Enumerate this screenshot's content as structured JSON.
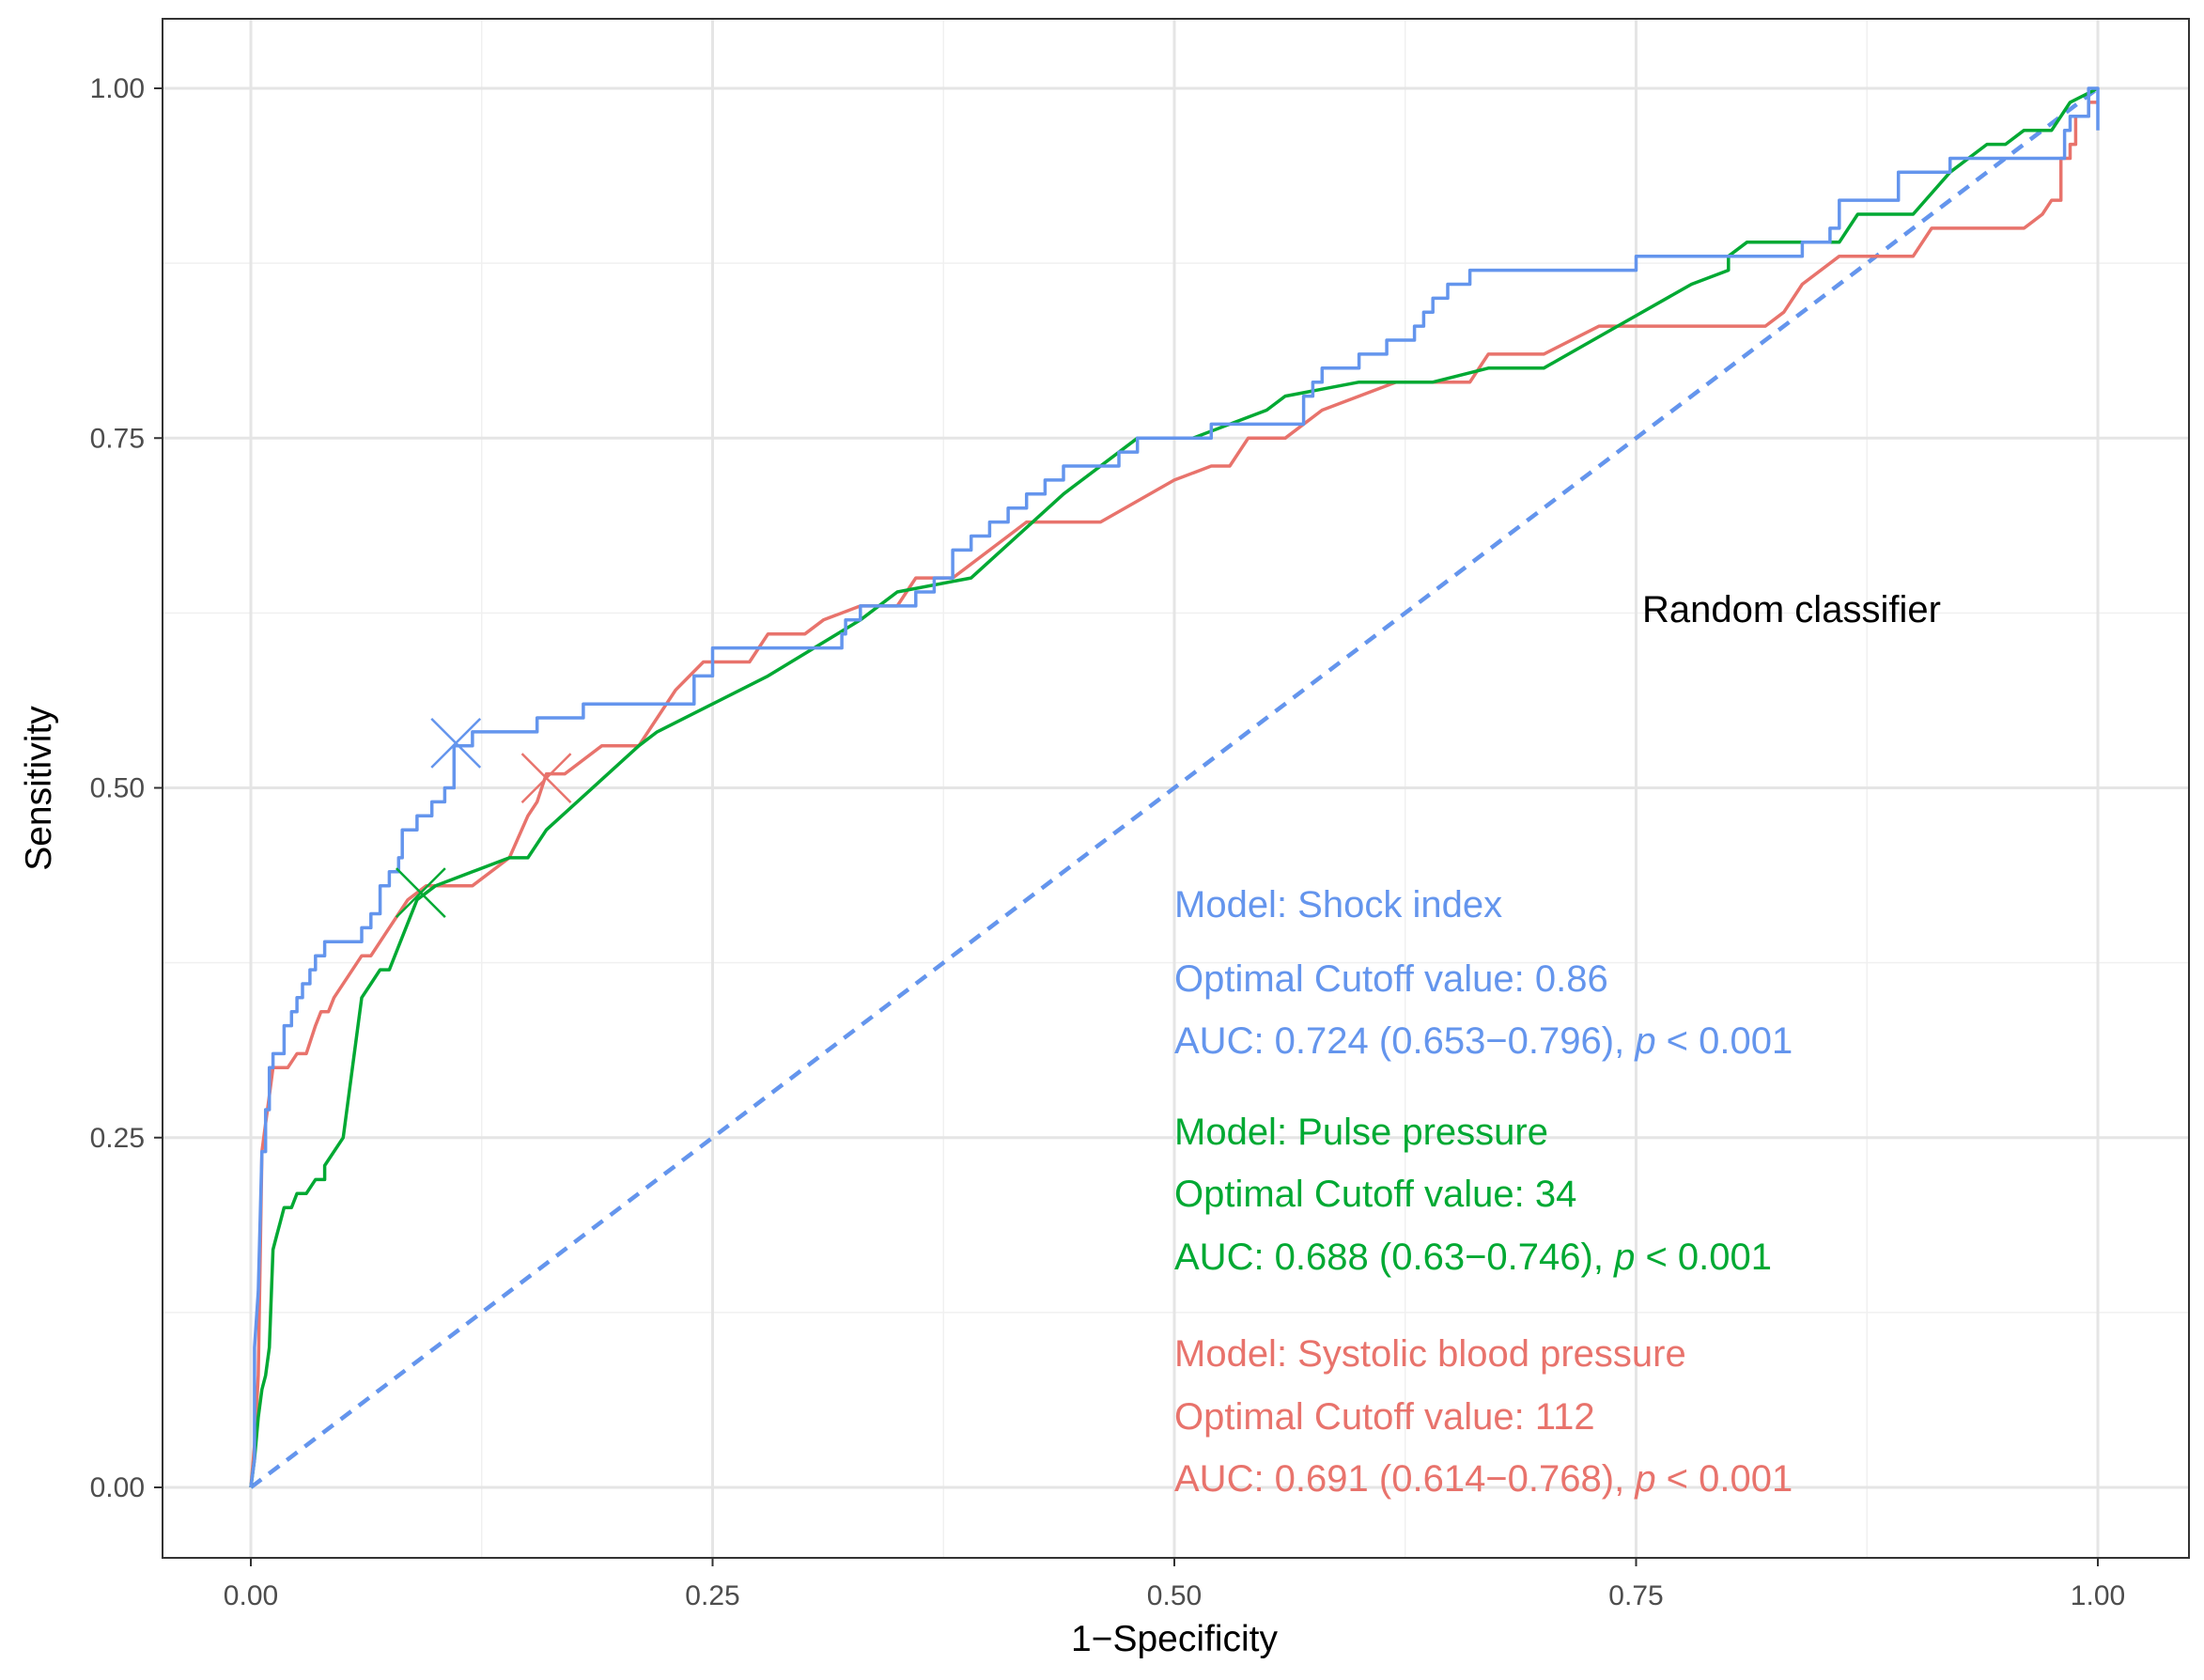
{
  "chart_data": {
    "type": "line",
    "xlabel": "1−Specificity",
    "ylabel": "Sensitivity",
    "xlim": [
      0,
      1
    ],
    "ylim": [
      0,
      1
    ],
    "x_ticks": [
      "0.00",
      "0.25",
      "0.50",
      "0.75",
      "1.00"
    ],
    "y_ticks": [
      "0.00",
      "0.25",
      "0.50",
      "0.75",
      "1.00"
    ],
    "grid": true,
    "legend": "none",
    "series": [
      {
        "key": "random",
        "color": "#6495ED",
        "dashed": true,
        "x": [
          0,
          1
        ],
        "y": [
          0,
          1
        ]
      },
      {
        "key": "shock",
        "color": "#6495ED",
        "points": [
          [
            0,
            0
          ],
          [
            0.002,
            0.02
          ],
          [
            0.002,
            0.1
          ],
          [
            0.004,
            0.14
          ],
          [
            0.006,
            0.24
          ],
          [
            0.008,
            0.24
          ],
          [
            0.008,
            0.27
          ],
          [
            0.01,
            0.27
          ],
          [
            0.01,
            0.3
          ],
          [
            0.012,
            0.3
          ],
          [
            0.012,
            0.31
          ],
          [
            0.018,
            0.31
          ],
          [
            0.018,
            0.33
          ],
          [
            0.022,
            0.33
          ],
          [
            0.022,
            0.34
          ],
          [
            0.025,
            0.34
          ],
          [
            0.025,
            0.35
          ],
          [
            0.028,
            0.35
          ],
          [
            0.028,
            0.36
          ],
          [
            0.032,
            0.36
          ],
          [
            0.032,
            0.37
          ],
          [
            0.035,
            0.37
          ],
          [
            0.035,
            0.38
          ],
          [
            0.04,
            0.38
          ],
          [
            0.04,
            0.39
          ],
          [
            0.06,
            0.39
          ],
          [
            0.06,
            0.4
          ],
          [
            0.065,
            0.4
          ],
          [
            0.065,
            0.41
          ],
          [
            0.07,
            0.41
          ],
          [
            0.07,
            0.43
          ],
          [
            0.075,
            0.43
          ],
          [
            0.075,
            0.44
          ],
          [
            0.08,
            0.44
          ],
          [
            0.08,
            0.45
          ],
          [
            0.082,
            0.45
          ],
          [
            0.082,
            0.47
          ],
          [
            0.09,
            0.47
          ],
          [
            0.09,
            0.48
          ],
          [
            0.098,
            0.48
          ],
          [
            0.098,
            0.49
          ],
          [
            0.105,
            0.49
          ],
          [
            0.105,
            0.5
          ],
          [
            0.11,
            0.5
          ],
          [
            0.11,
            0.53
          ],
          [
            0.12,
            0.53
          ],
          [
            0.12,
            0.54
          ],
          [
            0.155,
            0.54
          ],
          [
            0.155,
            0.55
          ],
          [
            0.18,
            0.55
          ],
          [
            0.18,
            0.56
          ],
          [
            0.24,
            0.56
          ],
          [
            0.24,
            0.58
          ],
          [
            0.25,
            0.58
          ],
          [
            0.25,
            0.6
          ],
          [
            0.32,
            0.6
          ],
          [
            0.32,
            0.61
          ],
          [
            0.322,
            0.61
          ],
          [
            0.322,
            0.62
          ],
          [
            0.33,
            0.62
          ],
          [
            0.33,
            0.63
          ],
          [
            0.36,
            0.63
          ],
          [
            0.36,
            0.64
          ],
          [
            0.37,
            0.64
          ],
          [
            0.37,
            0.65
          ],
          [
            0.38,
            0.65
          ],
          [
            0.38,
            0.67
          ],
          [
            0.39,
            0.67
          ],
          [
            0.39,
            0.68
          ],
          [
            0.4,
            0.68
          ],
          [
            0.4,
            0.69
          ],
          [
            0.41,
            0.69
          ],
          [
            0.41,
            0.7
          ],
          [
            0.42,
            0.7
          ],
          [
            0.42,
            0.71
          ],
          [
            0.43,
            0.71
          ],
          [
            0.43,
            0.72
          ],
          [
            0.44,
            0.72
          ],
          [
            0.44,
            0.73
          ],
          [
            0.47,
            0.73
          ],
          [
            0.47,
            0.74
          ],
          [
            0.48,
            0.74
          ],
          [
            0.48,
            0.75
          ],
          [
            0.52,
            0.75
          ],
          [
            0.52,
            0.76
          ],
          [
            0.57,
            0.76
          ],
          [
            0.57,
            0.78
          ],
          [
            0.575,
            0.78
          ],
          [
            0.575,
            0.79
          ],
          [
            0.58,
            0.79
          ],
          [
            0.58,
            0.8
          ],
          [
            0.6,
            0.8
          ],
          [
            0.6,
            0.81
          ],
          [
            0.615,
            0.81
          ],
          [
            0.615,
            0.82
          ],
          [
            0.63,
            0.82
          ],
          [
            0.63,
            0.83
          ],
          [
            0.635,
            0.83
          ],
          [
            0.635,
            0.84
          ],
          [
            0.64,
            0.84
          ],
          [
            0.64,
            0.85
          ],
          [
            0.648,
            0.85
          ],
          [
            0.648,
            0.86
          ],
          [
            0.66,
            0.86
          ],
          [
            0.66,
            0.87
          ],
          [
            0.75,
            0.87
          ],
          [
            0.75,
            0.88
          ],
          [
            0.84,
            0.88
          ],
          [
            0.84,
            0.89
          ],
          [
            0.855,
            0.89
          ],
          [
            0.855,
            0.9
          ],
          [
            0.86,
            0.9
          ],
          [
            0.86,
            0.91
          ],
          [
            0.86,
            0.92
          ],
          [
            0.892,
            0.92
          ],
          [
            0.892,
            0.94
          ],
          [
            0.92,
            0.94
          ],
          [
            0.92,
            0.95
          ],
          [
            0.982,
            0.95
          ],
          [
            0.982,
            0.97
          ],
          [
            0.985,
            0.97
          ],
          [
            0.985,
            0.98
          ],
          [
            0.995,
            0.98
          ],
          [
            0.995,
            1.0
          ],
          [
            1.0,
            1.0
          ],
          [
            1.0,
            0.97
          ]
        ]
      },
      {
        "key": "pulse",
        "color": "#00A933",
        "points": [
          [
            0,
            0
          ],
          [
            0.002,
            0.02
          ],
          [
            0.004,
            0.05
          ],
          [
            0.006,
            0.07
          ],
          [
            0.008,
            0.08
          ],
          [
            0.01,
            0.1
          ],
          [
            0.012,
            0.17
          ],
          [
            0.014,
            0.18
          ],
          [
            0.016,
            0.19
          ],
          [
            0.018,
            0.2
          ],
          [
            0.022,
            0.2
          ],
          [
            0.025,
            0.21
          ],
          [
            0.03,
            0.21
          ],
          [
            0.035,
            0.22
          ],
          [
            0.04,
            0.22
          ],
          [
            0.04,
            0.23
          ],
          [
            0.05,
            0.25
          ],
          [
            0.06,
            0.35
          ],
          [
            0.065,
            0.36
          ],
          [
            0.07,
            0.37
          ],
          [
            0.075,
            0.37
          ],
          [
            0.09,
            0.42
          ],
          [
            0.1,
            0.43
          ],
          [
            0.12,
            0.44
          ],
          [
            0.14,
            0.45
          ],
          [
            0.15,
            0.45
          ],
          [
            0.16,
            0.47
          ],
          [
            0.21,
            0.53
          ],
          [
            0.22,
            0.54
          ],
          [
            0.25,
            0.56
          ],
          [
            0.28,
            0.58
          ],
          [
            0.33,
            0.62
          ],
          [
            0.35,
            0.64
          ],
          [
            0.39,
            0.65
          ],
          [
            0.44,
            0.71
          ],
          [
            0.48,
            0.75
          ],
          [
            0.51,
            0.75
          ],
          [
            0.55,
            0.77
          ],
          [
            0.56,
            0.78
          ],
          [
            0.6,
            0.79
          ],
          [
            0.64,
            0.79
          ],
          [
            0.67,
            0.8
          ],
          [
            0.7,
            0.8
          ],
          [
            0.74,
            0.83
          ],
          [
            0.78,
            0.86
          ],
          [
            0.8,
            0.87
          ],
          [
            0.8,
            0.88
          ],
          [
            0.81,
            0.89
          ],
          [
            0.84,
            0.89
          ],
          [
            0.86,
            0.89
          ],
          [
            0.87,
            0.91
          ],
          [
            0.9,
            0.91
          ],
          [
            0.92,
            0.94
          ],
          [
            0.94,
            0.96
          ],
          [
            0.95,
            0.96
          ],
          [
            0.96,
            0.97
          ],
          [
            0.975,
            0.97
          ],
          [
            0.985,
            0.99
          ],
          [
            1.0,
            1.0
          ]
        ]
      },
      {
        "key": "systolic",
        "color": "#E8736C",
        "points": [
          [
            0,
            0
          ],
          [
            0.002,
            0.03
          ],
          [
            0.004,
            0.08
          ],
          [
            0.006,
            0.24
          ],
          [
            0.008,
            0.26
          ],
          [
            0.01,
            0.28
          ],
          [
            0.012,
            0.3
          ],
          [
            0.02,
            0.3
          ],
          [
            0.025,
            0.31
          ],
          [
            0.03,
            0.31
          ],
          [
            0.035,
            0.33
          ],
          [
            0.038,
            0.34
          ],
          [
            0.042,
            0.34
          ],
          [
            0.045,
            0.35
          ],
          [
            0.06,
            0.38
          ],
          [
            0.065,
            0.38
          ],
          [
            0.07,
            0.39
          ],
          [
            0.075,
            0.4
          ],
          [
            0.08,
            0.41
          ],
          [
            0.085,
            0.42
          ],
          [
            0.095,
            0.43
          ],
          [
            0.12,
            0.43
          ],
          [
            0.14,
            0.45
          ],
          [
            0.15,
            0.48
          ],
          [
            0.155,
            0.49
          ],
          [
            0.16,
            0.51
          ],
          [
            0.17,
            0.51
          ],
          [
            0.19,
            0.53
          ],
          [
            0.21,
            0.53
          ],
          [
            0.23,
            0.57
          ],
          [
            0.245,
            0.59
          ],
          [
            0.27,
            0.59
          ],
          [
            0.28,
            0.61
          ],
          [
            0.3,
            0.61
          ],
          [
            0.31,
            0.62
          ],
          [
            0.33,
            0.63
          ],
          [
            0.35,
            0.63
          ],
          [
            0.36,
            0.65
          ],
          [
            0.38,
            0.65
          ],
          [
            0.4,
            0.67
          ],
          [
            0.41,
            0.68
          ],
          [
            0.42,
            0.69
          ],
          [
            0.46,
            0.69
          ],
          [
            0.5,
            0.72
          ],
          [
            0.52,
            0.73
          ],
          [
            0.53,
            0.73
          ],
          [
            0.54,
            0.75
          ],
          [
            0.56,
            0.75
          ],
          [
            0.58,
            0.77
          ],
          [
            0.6,
            0.78
          ],
          [
            0.62,
            0.79
          ],
          [
            0.66,
            0.79
          ],
          [
            0.67,
            0.81
          ],
          [
            0.7,
            0.81
          ],
          [
            0.73,
            0.83
          ],
          [
            0.82,
            0.83
          ],
          [
            0.83,
            0.84
          ],
          [
            0.84,
            0.86
          ],
          [
            0.86,
            0.88
          ],
          [
            0.9,
            0.88
          ],
          [
            0.91,
            0.9
          ],
          [
            0.96,
            0.9
          ],
          [
            0.97,
            0.91
          ],
          [
            0.975,
            0.92
          ],
          [
            0.98,
            0.92
          ],
          [
            0.98,
            0.95
          ],
          [
            0.985,
            0.95
          ],
          [
            0.985,
            0.96
          ],
          [
            0.988,
            0.96
          ],
          [
            0.988,
            0.98
          ],
          [
            0.995,
            0.98
          ],
          [
            0.995,
            0.99
          ],
          [
            1.0,
            0.99
          ]
        ]
      }
    ],
    "cutoff_markers": [
      {
        "key": "shock",
        "color": "#6495ED",
        "x": 0.111,
        "y": 0.532
      },
      {
        "key": "systolic",
        "color": "#E8736C",
        "x": 0.16,
        "y": 0.507
      },
      {
        "key": "pulse",
        "color": "#00A933",
        "x": 0.092,
        "y": 0.425
      }
    ],
    "annotations": {
      "random_label": {
        "text": "Random classifier",
        "color": "#000000"
      },
      "shock": {
        "color": "#6495ED",
        "model": "Model: Shock index",
        "cutoff": "Optimal Cutoff value:  0.86",
        "auc_prefix": "AUC: 0.724 (0.653−0.796), ",
        "auc_p": "p",
        "auc_suffix": " < 0.001"
      },
      "pulse": {
        "color": "#00A933",
        "model": "Model: Pulse pressure",
        "cutoff": "Optimal Cutoff value:  34",
        "auc_prefix": "AUC: 0.688 (0.63−0.746), ",
        "auc_p": "p",
        "auc_suffix": " < 0.001"
      },
      "systolic": {
        "color": "#E8736C",
        "model": "Model: Systolic blood pressure",
        "cutoff": "Optimal Cutoff value:  112",
        "auc_prefix": "AUC:  0.691 (0.614−0.768), ",
        "auc_p": "p",
        "auc_suffix": " < 0.001"
      }
    }
  }
}
